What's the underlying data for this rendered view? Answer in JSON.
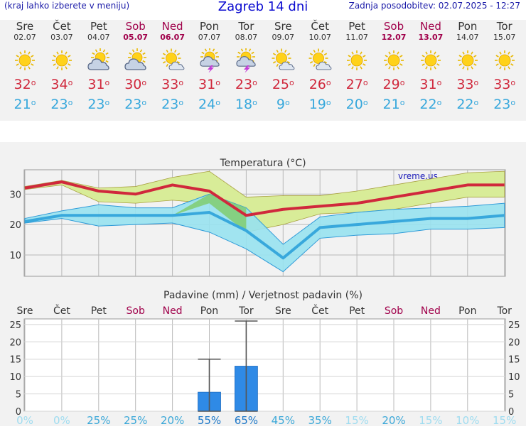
{
  "header": {
    "hint": "(kraj lahko izberete v meniju)",
    "title": "Zagreb 14 dni",
    "updated": "Zadnja posodobitev: 02.07.2025 - 12:27"
  },
  "days": [
    {
      "name": "Sre",
      "date": "02.07",
      "weekend": false,
      "icon": "sun-icon",
      "max": 32,
      "min": 21
    },
    {
      "name": "Čet",
      "date": "03.07",
      "weekend": false,
      "icon": "sun-icon",
      "max": 34,
      "min": 23
    },
    {
      "name": "Pet",
      "date": "04.07",
      "weekend": false,
      "icon": "sun-cloud-icon",
      "max": 31,
      "min": 23
    },
    {
      "name": "Sob",
      "date": "05.07",
      "weekend": true,
      "icon": "sun-cloud-icon",
      "max": 30,
      "min": 23
    },
    {
      "name": "Ned",
      "date": "06.07",
      "weekend": true,
      "icon": "sun-small-cloud-icon",
      "max": 33,
      "min": 23
    },
    {
      "name": "Pon",
      "date": "07.07",
      "weekend": false,
      "icon": "thunderstorm-icon",
      "max": 31,
      "min": 24
    },
    {
      "name": "Tor",
      "date": "08.07",
      "weekend": false,
      "icon": "thunderstorm-icon",
      "max": 23,
      "min": 18
    },
    {
      "name": "Sre",
      "date": "09.07",
      "weekend": false,
      "icon": "sun-small-cloud-icon",
      "max": 25,
      "min": 9
    },
    {
      "name": "Čet",
      "date": "10.07",
      "weekend": false,
      "icon": "sun-small-cloud-icon",
      "max": 26,
      "min": 19
    },
    {
      "name": "Pet",
      "date": "11.07",
      "weekend": false,
      "icon": "sun-icon",
      "max": 27,
      "min": 20
    },
    {
      "name": "Sob",
      "date": "12.07",
      "weekend": true,
      "icon": "sun-icon",
      "max": 29,
      "min": 21
    },
    {
      "name": "Ned",
      "date": "13.07",
      "weekend": true,
      "icon": "sun-icon",
      "max": 31,
      "min": 22
    },
    {
      "name": "Pon",
      "date": "14.07",
      "weekend": false,
      "icon": "sun-icon",
      "max": 33,
      "min": 22
    },
    {
      "name": "Tor",
      "date": "15.07",
      "weekend": false,
      "icon": "sun-icon",
      "max": 33,
      "min": 23
    }
  ],
  "chart_data": [
    {
      "type": "line",
      "title": "Temperatura (°C)",
      "watermark": "vreme.us",
      "ylim": [
        3,
        38
      ],
      "yticks": [
        10,
        20,
        30
      ],
      "grid": true,
      "series": [
        {
          "values": [
            32,
            34,
            31,
            30,
            33,
            31,
            23,
            25,
            26,
            27,
            29,
            31,
            33,
            33
          ],
          "color": "#d0283c"
        },
        {
          "values": [
            21,
            23,
            23,
            23,
            23,
            24,
            18,
            9,
            19,
            20,
            21,
            22,
            22,
            23
          ],
          "color": "#38a8dc"
        }
      ],
      "max_band_upper": [
        32.5,
        34.5,
        32,
        32.5,
        35.5,
        37.5,
        29,
        29.5,
        29.5,
        31,
        33,
        35,
        37,
        37.5
      ],
      "max_band_lower": [
        31.5,
        33,
        27.5,
        27,
        28,
        27,
        17.5,
        20,
        23.5,
        24,
        25,
        27,
        29,
        29
      ],
      "min_band_upper": [
        22,
        24.5,
        26.5,
        25.5,
        25.5,
        30,
        25.5,
        13.5,
        22.5,
        24,
        25,
        25.5,
        26,
        27
      ],
      "min_band_lower": [
        20.5,
        22,
        19.5,
        20,
        20.5,
        17.5,
        12,
        4.5,
        15.5,
        16.5,
        17,
        18.5,
        18.5,
        19
      ],
      "band_colors": {
        "max": "#d8ec98",
        "min": "#98e2f0",
        "overlap": "#80cc70"
      }
    },
    {
      "type": "bar",
      "title": "Padavine (mm) / Verjetnost padavin (%)",
      "categories": [
        "Sre",
        "Čet",
        "Pet",
        "Sob",
        "Ned",
        "Pon",
        "Tor",
        "Sre",
        "Čet",
        "Pet",
        "Sob",
        "Ned",
        "Pon",
        "Tor"
      ],
      "values": [
        0,
        0,
        0,
        0,
        0,
        5.5,
        13,
        0,
        0,
        0,
        0,
        0,
        0,
        0
      ],
      "range_low": [
        null,
        null,
        null,
        null,
        null,
        0,
        0,
        null,
        null,
        null,
        null,
        null,
        null,
        null
      ],
      "range_high": [
        null,
        null,
        null,
        null,
        null,
        15,
        26,
        null,
        null,
        null,
        null,
        null,
        null,
        null
      ],
      "probability": [
        "0%",
        "0%",
        "25%",
        "25%",
        "20%",
        "55%",
        "65%",
        "45%",
        "35%",
        "15%",
        "20%",
        "15%",
        "10%",
        "15%"
      ],
      "ylim": [
        0,
        26
      ],
      "yticks": [
        0,
        5,
        10,
        15,
        20,
        25
      ],
      "bar_color": "#2f8ae6"
    }
  ]
}
